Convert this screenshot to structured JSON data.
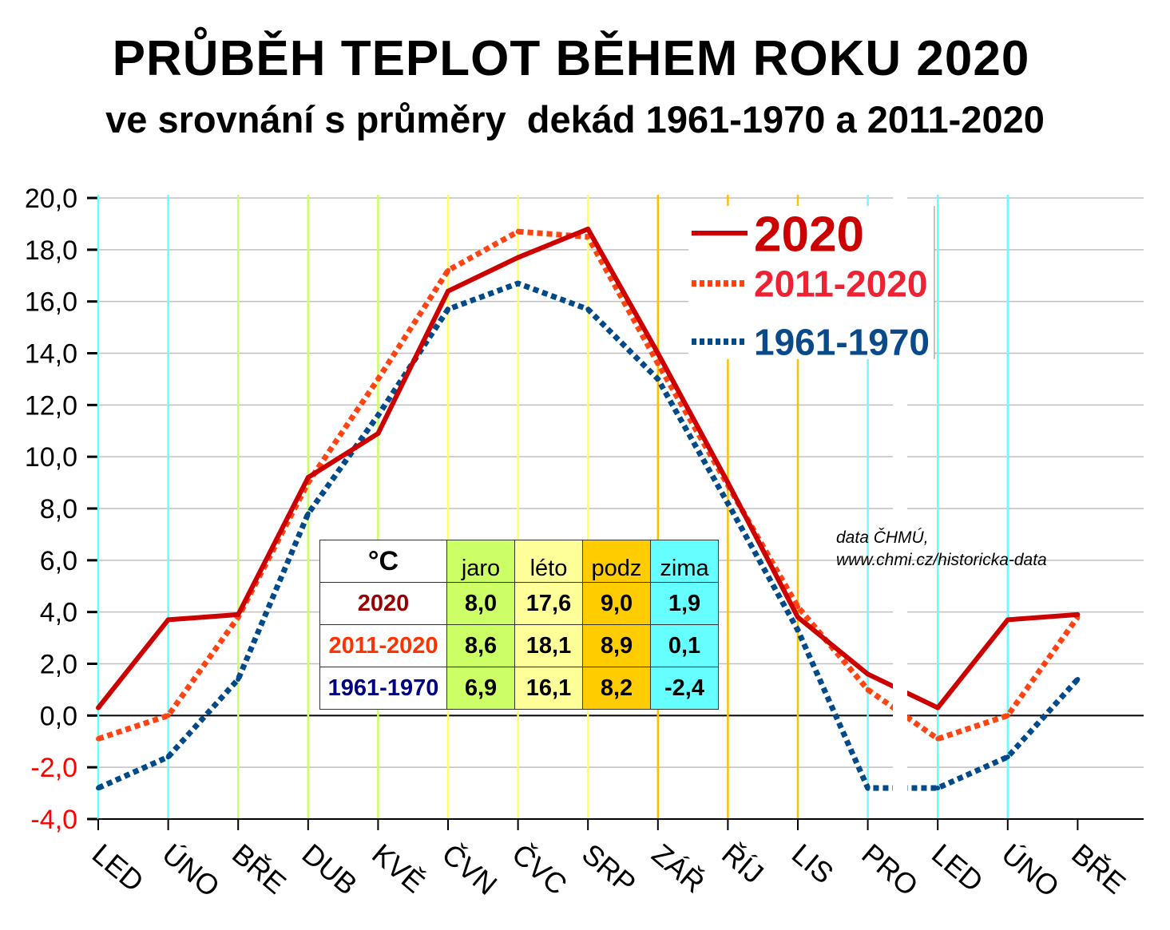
{
  "chart_data": {
    "type": "line",
    "title": "PRŮBĚH TEPLOT BĚHEM ROKU 2020",
    "subtitle": "ve srovnání s průměry  dekád 1961-1970 a 2011-2020",
    "categories": [
      "LED",
      "ÚNO",
      "BŘE",
      "DUB",
      "KVĚ",
      "ČVN",
      "ČVC",
      "SRP",
      "ZÁŘ",
      "ŘÍJ",
      "LIS",
      "PRO",
      "LED",
      "ÚNO",
      "BŘE"
    ],
    "ylim": [
      -4,
      20
    ],
    "yticks": [
      "20,0",
      "18,0",
      "16,0",
      "14,0",
      "12,0",
      "10,0",
      "8,0",
      "6,0",
      "4,0",
      "2,0",
      "0,0",
      "-2,0",
      "-4,0"
    ],
    "ytick_values": [
      20,
      18,
      16,
      14,
      12,
      10,
      8,
      6,
      4,
      2,
      0,
      -2,
      -4
    ],
    "grid": true,
    "legend_position": "top-right",
    "series": [
      {
        "name": "2020",
        "color": "#cc0000",
        "style": "solid",
        "values": [
          0.3,
          3.7,
          3.9,
          9.2,
          10.9,
          16.4,
          17.7,
          18.8,
          14.0,
          9.0,
          3.8,
          1.6,
          0.3,
          3.7,
          3.9
        ]
      },
      {
        "name": "2011-2020",
        "color": "#ff4411",
        "legend_color": "#ee2233",
        "style": "dotted",
        "values": [
          -0.9,
          0.0,
          3.8,
          9.0,
          13.0,
          17.2,
          18.7,
          18.5,
          13.6,
          8.9,
          4.2,
          1.0,
          -0.9,
          0.0,
          3.8
        ]
      },
      {
        "name": "1961-1970",
        "color": "#004a8a",
        "legend_color": "#0a4a8a",
        "style": "dotted",
        "values": [
          -2.8,
          -1.6,
          1.4,
          7.8,
          11.6,
          15.7,
          16.7,
          15.7,
          13.0,
          8.2,
          3.3,
          -2.8,
          -2.8,
          -1.6,
          1.4
        ]
      }
    ],
    "season_colors": [
      "#66ffff",
      "#66ffff",
      "#ccff66",
      "#ccff66",
      "#ccff66",
      "#ffff66",
      "#ffff66",
      "#ffff66",
      "#ffc000",
      "#ffc000",
      "#ffc000",
      "#66ffff",
      "#66ffff",
      "#66ffff",
      "#ccff66"
    ],
    "source": [
      "data ČHMÚ,",
      "www.chmi.cz/historicka-data"
    ],
    "table": {
      "unit": "°C",
      "columns": [
        "jaro",
        "léto",
        "podz",
        "zima"
      ],
      "rows": [
        {
          "label": "2020",
          "color": "#990000",
          "values": [
            "8,0",
            "17,6",
            "9,0",
            "1,9"
          ]
        },
        {
          "label": "2011-2020",
          "color": "#ff3300",
          "values": [
            "8,6",
            "18,1",
            "8,9",
            "0,1"
          ]
        },
        {
          "label": "1961-1970",
          "color": "#000080",
          "values": [
            "6,9",
            "16,1",
            "8,2",
            "-2,4"
          ]
        }
      ]
    }
  }
}
